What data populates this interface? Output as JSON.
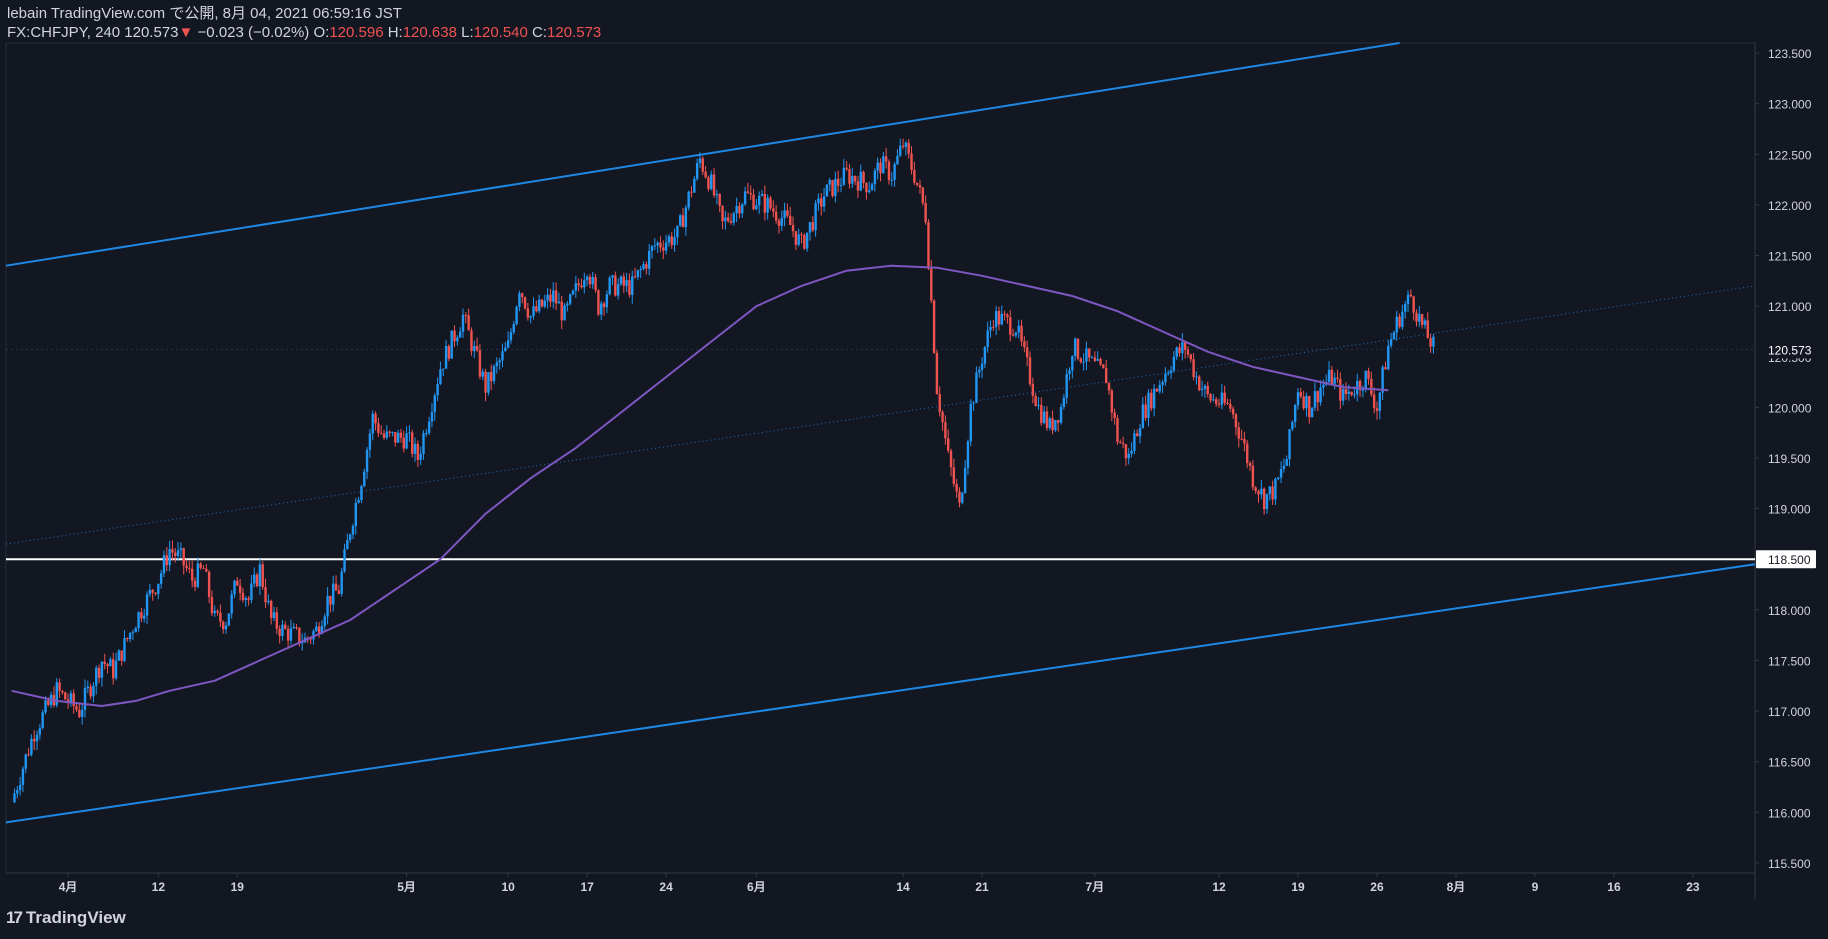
{
  "header": {
    "line1": "lebain TradingView.com で公開, 8月 04, 2021 06:59:16 JST",
    "symbol": "FX:CHFJPY, 240",
    "last": "120.573",
    "arrow": "▼",
    "change": "−0.023 (−0.02%)",
    "o_label": "O:",
    "o_value": "120.596",
    "h_label": "H:",
    "h_value": "120.638",
    "l_label": "L:",
    "l_value": "120.540",
    "c_label": "C:",
    "c_value": "120.573"
  },
  "footer": {
    "logo_icon": "tradingview-logo-icon",
    "brand": "TradingView"
  },
  "colors": {
    "background": "#131722",
    "up": "#2196f3",
    "down": "#ef5350",
    "channel": "#1e88e5",
    "ma": "#7e57c2",
    "support": "#ffffff",
    "grid_text": "#d1d4dc"
  },
  "chart_data": {
    "type": "candlestick",
    "title": "FX:CHFJPY, 240",
    "ylim": [
      115.4,
      123.6
    ],
    "y_ticks": [
      "115.500",
      "116.000",
      "116.500",
      "117.000",
      "117.500",
      "118.000",
      "118.500",
      "119.000",
      "119.500",
      "120.000",
      "120.500",
      "121.000",
      "121.500",
      "122.000",
      "122.500",
      "123.000",
      "123.500"
    ],
    "x_ticks": [
      {
        "label": "4月",
        "d": 3
      },
      {
        "label": "12",
        "d": 11
      },
      {
        "label": "19",
        "d": 18
      },
      {
        "label": "5月",
        "d": 33
      },
      {
        "label": "10",
        "d": 42
      },
      {
        "label": "17",
        "d": 49
      },
      {
        "label": "24",
        "d": 56
      },
      {
        "label": "6月",
        "d": 64
      },
      {
        "label": "14",
        "d": 77
      },
      {
        "label": "21",
        "d": 84
      },
      {
        "label": "7月",
        "d": 94
      },
      {
        "label": "12",
        "d": 105
      },
      {
        "label": "19",
        "d": 112
      },
      {
        "label": "26",
        "d": 119
      },
      {
        "label": "8月",
        "d": 126
      },
      {
        "label": "9",
        "d": 133
      },
      {
        "label": "16",
        "d": 140
      },
      {
        "label": "23",
        "d": 147
      }
    ],
    "x_range_days": [
      -2.5,
      152.5
    ],
    "price_path": [
      [
        -2,
        116.1
      ],
      [
        0,
        116.8
      ],
      [
        2,
        117.2
      ],
      [
        4,
        117.0
      ],
      [
        6,
        117.5
      ],
      [
        7,
        117.4
      ],
      [
        9,
        117.9
      ],
      [
        11,
        118.3
      ],
      [
        12,
        118.6
      ],
      [
        13,
        118.5
      ],
      [
        14,
        118.3
      ],
      [
        15,
        118.4
      ],
      [
        16,
        117.9
      ],
      [
        17,
        117.9
      ],
      [
        18,
        118.3
      ],
      [
        19,
        118.1
      ],
      [
        20,
        118.4
      ],
      [
        21,
        117.9
      ],
      [
        22,
        117.8
      ],
      [
        24,
        117.7
      ],
      [
        25,
        117.8
      ],
      [
        26,
        118.1
      ],
      [
        27,
        118.2
      ],
      [
        28,
        118.8
      ],
      [
        29,
        119.3
      ],
      [
        30,
        119.9
      ],
      [
        31,
        119.7
      ],
      [
        33,
        119.7
      ],
      [
        34,
        119.5
      ],
      [
        36,
        120.4
      ],
      [
        38,
        120.9
      ],
      [
        40,
        120.2
      ],
      [
        42,
        120.6
      ],
      [
        43,
        121.2
      ],
      [
        44,
        120.9
      ],
      [
        46,
        121.1
      ],
      [
        47,
        120.9
      ],
      [
        49,
        121.4
      ],
      [
        50,
        121.0
      ],
      [
        51,
        121.2
      ],
      [
        53,
        121.2
      ],
      [
        55,
        121.6
      ],
      [
        57,
        121.7
      ],
      [
        59,
        122.45
      ],
      [
        60,
        122.2
      ],
      [
        61,
        121.8
      ],
      [
        63,
        122.1
      ],
      [
        65,
        122.0
      ],
      [
        67,
        121.8
      ],
      [
        68,
        121.6
      ],
      [
        70,
        122.1
      ],
      [
        72,
        122.3
      ],
      [
        74,
        122.2
      ],
      [
        75,
        122.4
      ],
      [
        76,
        122.3
      ],
      [
        77,
        122.6
      ],
      [
        78,
        122.3
      ],
      [
        79,
        121.9
      ],
      [
        80,
        120.2
      ],
      [
        81,
        119.5
      ],
      [
        82,
        119.0
      ],
      [
        83,
        120.0
      ],
      [
        84,
        120.5
      ],
      [
        85,
        120.9
      ],
      [
        87,
        120.8
      ],
      [
        88,
        120.4
      ],
      [
        89,
        120.0
      ],
      [
        90,
        119.8
      ],
      [
        91,
        120.0
      ],
      [
        92,
        120.6
      ],
      [
        93,
        120.5
      ],
      [
        95,
        120.3
      ],
      [
        96,
        119.7
      ],
      [
        97,
        119.5
      ],
      [
        98,
        119.9
      ],
      [
        100,
        120.3
      ],
      [
        101,
        120.5
      ],
      [
        102,
        120.6
      ],
      [
        103,
        120.3
      ],
      [
        104,
        120.1
      ],
      [
        106,
        120.0
      ],
      [
        107,
        119.7
      ],
      [
        108,
        119.3
      ],
      [
        109,
        119.1
      ],
      [
        110,
        119.2
      ],
      [
        111,
        119.5
      ],
      [
        112,
        120.2
      ],
      [
        113,
        120.0
      ],
      [
        114,
        120.2
      ],
      [
        115,
        120.3
      ],
      [
        116,
        120.1
      ],
      [
        118,
        120.3
      ],
      [
        119,
        120.0
      ],
      [
        120,
        120.6
      ],
      [
        121,
        120.9
      ],
      [
        122,
        121.1
      ],
      [
        123,
        120.8
      ],
      [
        124,
        120.6
      ]
    ],
    "ma_curve": [
      [
        -2,
        117.2
      ],
      [
        2,
        117.1
      ],
      [
        6,
        117.05
      ],
      [
        9,
        117.1
      ],
      [
        12,
        117.2
      ],
      [
        16,
        117.3
      ],
      [
        20,
        117.5
      ],
      [
        24,
        117.7
      ],
      [
        28,
        117.9
      ],
      [
        32,
        118.2
      ],
      [
        36,
        118.5
      ],
      [
        40,
        118.95
      ],
      [
        44,
        119.3
      ],
      [
        48,
        119.6
      ],
      [
        52,
        119.95
      ],
      [
        56,
        120.3
      ],
      [
        60,
        120.65
      ],
      [
        64,
        121.0
      ],
      [
        68,
        121.2
      ],
      [
        72,
        121.35
      ],
      [
        76,
        121.4
      ],
      [
        80,
        121.38
      ],
      [
        84,
        121.3
      ],
      [
        88,
        121.2
      ],
      [
        92,
        121.1
      ],
      [
        96,
        120.95
      ],
      [
        100,
        120.75
      ],
      [
        104,
        120.55
      ],
      [
        108,
        120.4
      ],
      [
        112,
        120.3
      ],
      [
        116,
        120.2
      ],
      [
        120,
        120.17
      ]
    ],
    "channel_upper": [
      [
        -2.5,
        121.4
      ],
      [
        121,
        123.6
      ]
    ],
    "channel_lower": [
      [
        -2.5,
        115.9
      ],
      [
        152.5,
        118.45
      ]
    ],
    "channel_mid": [
      [
        -2.5,
        118.65
      ],
      [
        152.5,
        121.2
      ]
    ],
    "support_level": 118.5,
    "support_label": "118.500",
    "last_price": 120.573,
    "last_price_label": "120.573"
  }
}
